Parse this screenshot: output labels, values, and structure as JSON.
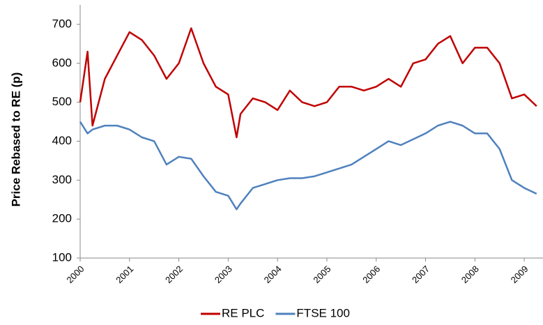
{
  "chart_data": {
    "type": "line",
    "y_label": "Price Rebased to RE (p)",
    "x": [
      2000,
      2000.15,
      2000.25,
      2000.5,
      2000.75,
      2001,
      2001.25,
      2001.5,
      2001.75,
      2002,
      2002.25,
      2002.5,
      2002.75,
      2003,
      2003.17,
      2003.25,
      2003.5,
      2003.75,
      2004,
      2004.25,
      2004.5,
      2004.75,
      2005,
      2005.25,
      2005.5,
      2005.75,
      2006,
      2006.25,
      2006.5,
      2006.75,
      2007,
      2007.25,
      2007.5,
      2007.75,
      2008,
      2008.25,
      2008.5,
      2008.75,
      2009,
      2009.25
    ],
    "series": [
      {
        "name": "RE PLC",
        "color": "#c00000",
        "values": [
          500,
          630,
          440,
          560,
          620,
          680,
          660,
          620,
          560,
          600,
          690,
          600,
          540,
          520,
          410,
          470,
          510,
          500,
          480,
          530,
          500,
          490,
          500,
          540,
          540,
          530,
          540,
          560,
          540,
          600,
          610,
          650,
          670,
          600,
          640,
          640,
          600,
          510,
          520,
          490
        ]
      },
      {
        "name": "FTSE 100",
        "color": "#4f81bd",
        "values": [
          450,
          420,
          430,
          440,
          440,
          430,
          410,
          400,
          340,
          360,
          355,
          310,
          270,
          260,
          225,
          240,
          280,
          290,
          300,
          305,
          305,
          310,
          320,
          330,
          340,
          360,
          380,
          400,
          390,
          405,
          420,
          440,
          450,
          440,
          420,
          420,
          380,
          300,
          280,
          265
        ]
      }
    ],
    "xlim": [
      2000,
      2009.38
    ],
    "xticks": [
      2000,
      2001,
      2002,
      2003,
      2004,
      2005,
      2006,
      2007,
      2008,
      2009
    ],
    "ylim": [
      100,
      750
    ],
    "yticks": [
      100,
      200,
      300,
      400,
      500,
      600,
      700
    ],
    "legend": "bottom"
  }
}
